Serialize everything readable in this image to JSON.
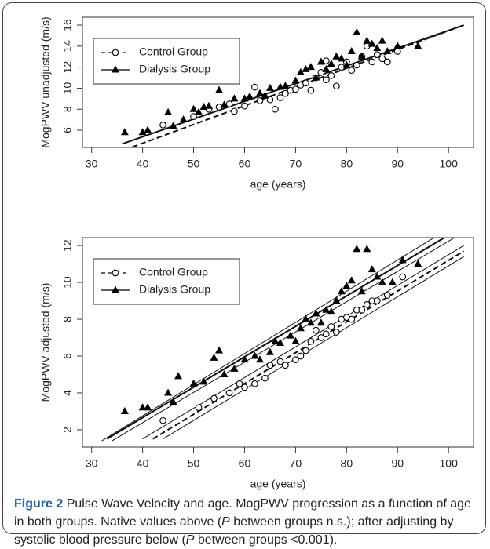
{
  "chart_data": [
    {
      "type": "scatter",
      "ylabel": "MogPWV unadjusted (m/s)",
      "xlabel": "age (years)",
      "xlim": [
        28.2,
        104.9
      ],
      "ylim": [
        4.36,
        16.75
      ],
      "xticks": [
        30,
        40,
        50,
        60,
        70,
        80,
        90,
        100
      ],
      "yticks": [
        6,
        8,
        10,
        12,
        14,
        16
      ],
      "legend": "top-left",
      "series": [
        {
          "name": "Control Group",
          "color": "#000000",
          "marker": "circle-open",
          "line": "dashed",
          "x": [
            44,
            50,
            53,
            55,
            57,
            58,
            60,
            62,
            63,
            65,
            66,
            67,
            68,
            69,
            70,
            71,
            72,
            73,
            74,
            75,
            76,
            76,
            77,
            78,
            79,
            80,
            81,
            82,
            83,
            84,
            85,
            86,
            87,
            88,
            90
          ],
          "values": [
            6.5,
            7.3,
            8.0,
            8.2,
            8.5,
            7.8,
            8.3,
            10.1,
            8.8,
            8.9,
            8.0,
            9.1,
            9.5,
            9.8,
            9.9,
            10.3,
            10.5,
            9.8,
            11.0,
            11.5,
            12.6,
            10.8,
            11.2,
            10.2,
            12.0,
            12.5,
            11.7,
            12.2,
            13.0,
            14.0,
            12.5,
            13.2,
            12.8,
            12.5,
            13.5
          ]
        },
        {
          "name": "Dialysis Group",
          "color": "#000000",
          "marker": "triangle",
          "line": "solid",
          "x": [
            36.5,
            40,
            41,
            45,
            46,
            48,
            50,
            51,
            52,
            53,
            55,
            56,
            58,
            60,
            61,
            63,
            64,
            65,
            67,
            68,
            70,
            71,
            72,
            73,
            74,
            75,
            76,
            77,
            78,
            79,
            80,
            81,
            82,
            83,
            84,
            85,
            86,
            87,
            88,
            90,
            94
          ],
          "values": [
            5.8,
            5.8,
            6.0,
            7.7,
            6.4,
            7.0,
            8.0,
            7.7,
            8.2,
            8.3,
            9.8,
            8.4,
            9.0,
            9.0,
            9.2,
            9.5,
            9.3,
            10.0,
            10.1,
            10.2,
            10.7,
            11.5,
            11.8,
            12.0,
            11.0,
            12.5,
            11.8,
            12.3,
            13.0,
            12.8,
            12.2,
            13.5,
            15.3,
            13.0,
            14.5,
            14.2,
            13.8,
            14.5,
            13.5,
            14.0,
            14.0
          ]
        }
      ],
      "fit_lines": [
        {
          "style": "dashed",
          "weight": "bold",
          "x": [
            38,
            103
          ],
          "values": [
            4.4,
            16.0
          ]
        },
        {
          "style": "solid",
          "weight": "bold",
          "x": [
            36,
            103
          ],
          "values": [
            4.7,
            16.0
          ]
        }
      ]
    },
    {
      "type": "scatter",
      "ylabel": "MogPWV adjusted (m/s)",
      "xlabel": "age (years)",
      "xlim": [
        28.2,
        104.9
      ],
      "ylim": [
        1.06,
        12.43
      ],
      "xticks": [
        30,
        40,
        50,
        60,
        70,
        80,
        90,
        100
      ],
      "yticks": [
        2,
        4,
        6,
        8,
        10,
        12
      ],
      "legend": "top-left",
      "series": [
        {
          "name": "Control Group",
          "color": "#000000",
          "marker": "circle-open",
          "line": "dashed",
          "x": [
            44,
            51,
            54,
            57,
            59,
            60,
            62,
            64,
            65,
            67,
            68,
            70,
            71,
            72,
            73,
            74,
            75,
            76,
            77,
            78,
            79,
            80,
            81,
            82,
            83,
            84,
            85,
            86,
            88,
            91
          ],
          "values": [
            2.5,
            3.2,
            3.7,
            4.0,
            4.5,
            4.3,
            4.5,
            4.8,
            5.5,
            5.7,
            5.5,
            5.8,
            6.0,
            6.3,
            6.8,
            7.4,
            7.0,
            7.2,
            7.6,
            7.3,
            8.0,
            8.1,
            8.0,
            8.5,
            8.5,
            8.8,
            9.0,
            9.0,
            9.3,
            10.3
          ]
        },
        {
          "name": "Dialysis Group",
          "color": "#000000",
          "marker": "triangle",
          "line": "solid",
          "x": [
            36.5,
            40,
            41,
            45,
            46,
            47,
            50,
            52,
            54,
            55,
            56,
            58,
            60,
            62,
            63,
            65,
            66,
            67,
            69,
            70,
            71,
            72,
            73,
            74,
            75,
            76,
            77,
            78,
            79,
            80,
            81,
            82,
            83,
            84,
            85,
            86,
            87,
            89,
            91,
            94
          ],
          "values": [
            3.0,
            3.2,
            3.2,
            4.0,
            3.5,
            4.9,
            4.5,
            4.6,
            5.9,
            6.3,
            5.0,
            5.3,
            5.8,
            6.0,
            5.8,
            6.2,
            6.8,
            6.7,
            7.1,
            6.8,
            7.5,
            8.0,
            7.8,
            8.3,
            7.8,
            8.5,
            8.4,
            9.0,
            9.5,
            9.8,
            10.1,
            11.8,
            9.5,
            11.8,
            10.7,
            10.3,
            10.0,
            10.0,
            11.2,
            11.0
          ]
        }
      ],
      "fit_lines": [
        {
          "style": "solid",
          "weight": "bold",
          "x": [
            33,
            99
          ],
          "values": [
            1.5,
            12.4
          ]
        },
        {
          "style": "solid",
          "weight": "thin",
          "x": [
            32,
            97
          ],
          "values": [
            1.4,
            12.4
          ]
        },
        {
          "style": "solid",
          "weight": "thin",
          "x": [
            34,
            101
          ],
          "values": [
            1.4,
            12.4
          ]
        },
        {
          "style": "dashed",
          "weight": "bold",
          "x": [
            42,
            103
          ],
          "values": [
            1.5,
            11.7
          ]
        },
        {
          "style": "solid",
          "weight": "thin",
          "x": [
            40,
            103
          ],
          "values": [
            1.5,
            12.0
          ]
        },
        {
          "style": "solid",
          "weight": "thin",
          "x": [
            44,
            103
          ],
          "values": [
            1.5,
            11.4
          ]
        }
      ]
    }
  ],
  "caption": {
    "label": "Figure 2",
    "parts": [
      "Pulse Wave Velocity and age. MogPWV progression as a function of age in both groups. Native values above (",
      "P",
      " between groups n.s.); after adjusting by systolic blood pressure below (",
      "P",
      " between groups <0.001)."
    ]
  }
}
